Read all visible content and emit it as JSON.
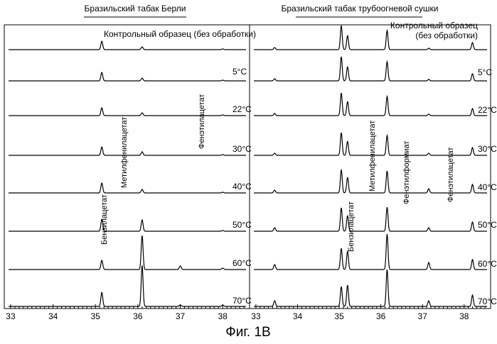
{
  "caption": "Фиг. 1В",
  "chart_data": [
    {
      "type": "line",
      "title": "Бразильский табак Берли",
      "x_ticks": [
        "33",
        "34",
        "35",
        "36",
        "37",
        "38"
      ],
      "xlim": [
        32.95,
        38.55
      ],
      "trace_labels": [
        "Контрольный образец (без обработки)",
        "5°C",
        "22°C",
        "30°C",
        "40°C",
        "50°C",
        "60°C",
        "70°C"
      ],
      "compound_labels": [
        {
          "name": "Бензилацетат",
          "rt": 35.15
        },
        {
          "name": "Метилфенилацетат",
          "rt": 36.1
        },
        {
          "name": "Фенэтилацетат",
          "rt": 38.0
        }
      ],
      "peaks": [
        {
          "name": "Бензилацетат",
          "rt": 35.15,
          "heights": [
            12,
            12,
            11,
            12,
            14,
            17,
            13,
            20
          ]
        },
        {
          "name": "Метилфенилацетат",
          "rt": 36.1,
          "heights": [
            4,
            4,
            4,
            5,
            5,
            16,
            48,
            58
          ]
        },
        {
          "name": "peak-37.0",
          "rt": 37.0,
          "heights": [
            0,
            0,
            0,
            0,
            0,
            0,
            5,
            2
          ]
        },
        {
          "name": "Фенэтилацетат",
          "rt": 38.0,
          "heights": [
            1,
            1,
            1,
            1,
            1,
            1,
            2,
            2
          ]
        }
      ]
    },
    {
      "type": "line",
      "title": "Бразильский табак трубоогневой сушки",
      "x_ticks": [
        "33",
        "34",
        "35",
        "36",
        "37",
        "38"
      ],
      "xlim": [
        32.95,
        38.55
      ],
      "trace_labels": [
        "Контрольный образец (без обработки)",
        "5°C",
        "22°C",
        "30°C",
        "40°C",
        "50°C",
        "60°C",
        "70°C"
      ],
      "compound_labels": [
        {
          "name": "Бензилацетат",
          "rt": 35.2
        },
        {
          "name": "Метилфенилацетат",
          "rt": 36.15
        },
        {
          "name": "Фенэтилформиат",
          "rt": 37.15
        },
        {
          "name": "Фенэтилацетат",
          "rt": 38.2
        }
      ],
      "peaks": [
        {
          "name": "peak-33.45",
          "rt": 33.45,
          "heights": [
            3,
            3,
            3,
            3,
            4,
            5,
            7,
            8
          ]
        },
        {
          "name": "peak-35.05",
          "rt": 35.05,
          "heights": [
            34,
            34,
            32,
            32,
            33,
            33,
            30,
            28
          ]
        },
        {
          "name": "Бензилацетат",
          "rt": 35.2,
          "heights": [
            20,
            20,
            20,
            20,
            22,
            22,
            26,
            30
          ]
        },
        {
          "name": "Метилфенилацетат",
          "rt": 36.15,
          "heights": [
            27,
            27,
            27,
            28,
            31,
            34,
            50,
            52
          ]
        },
        {
          "name": "Фенэтилформиат",
          "rt": 37.15,
          "heights": [
            2,
            2,
            2,
            3,
            6,
            5,
            10,
            8
          ]
        },
        {
          "name": "Фенэтилацетат",
          "rt": 38.2,
          "heights": [
            10,
            10,
            10,
            11,
            12,
            13,
            14,
            16
          ]
        }
      ]
    }
  ]
}
